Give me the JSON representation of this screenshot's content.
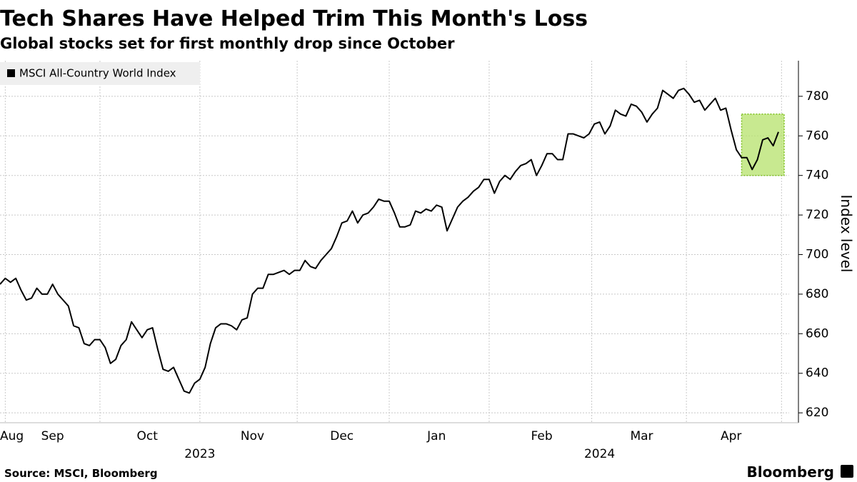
{
  "chart_data": {
    "type": "line",
    "title": "Tech Shares Have Helped Trim This Month's Loss",
    "subtitle": "Global stocks set for first monthly drop since October",
    "source": "Source: MSCI, Bloomberg",
    "brand": "Bloomberg",
    "y_label": "Index level",
    "legend": "upper left",
    "grid": true,
    "categories": [
      "Aug",
      null,
      null,
      null,
      null,
      null,
      null,
      null,
      null,
      null,
      "Sep",
      null,
      null,
      null,
      null,
      null,
      null,
      null,
      null,
      null,
      null,
      null,
      null,
      null,
      null,
      null,
      null,
      null,
      "Oct",
      null,
      null,
      null,
      null,
      null,
      null,
      null,
      null,
      null,
      null,
      null,
      null,
      null,
      null,
      null,
      null,
      null,
      null,
      null,
      "Nov",
      null,
      null,
      null,
      null,
      null,
      null,
      null,
      null,
      null,
      null,
      null,
      null,
      null,
      null,
      null,
      null,
      "Dec",
      null,
      null,
      null,
      null,
      null,
      null,
      null,
      null,
      null,
      null,
      null,
      null,
      null,
      null,
      null,
      null,
      null,
      "Jan",
      null,
      null,
      null,
      null,
      null,
      null,
      null,
      null,
      null,
      null,
      null,
      null,
      null,
      null,
      null,
      null,
      null,
      null,
      null,
      "Feb",
      null,
      null,
      null,
      null,
      null,
      null,
      null,
      null,
      null,
      null,
      null,
      null,
      null,
      null,
      null,
      null,
      null,
      null,
      "Mar",
      null,
      null,
      null,
      null,
      null,
      null,
      null,
      null,
      null,
      null,
      null,
      null,
      null,
      null,
      null,
      null,
      "Apr",
      null,
      null,
      null,
      null,
      null,
      null,
      null,
      null,
      null
    ],
    "categories2": [
      null,
      null,
      null,
      null,
      null,
      null,
      null,
      null,
      null,
      null,
      null,
      null,
      null,
      null,
      null,
      null,
      null,
      null,
      null,
      null,
      null,
      null,
      null,
      null,
      null,
      null,
      null,
      null,
      null,
      null,
      null,
      null,
      null,
      null,
      null,
      null,
      null,
      null,
      "2023",
      null,
      null,
      null,
      null,
      null,
      null,
      null,
      null,
      null,
      null,
      null,
      null,
      null,
      null,
      null,
      null,
      null,
      null,
      null,
      null,
      null,
      null,
      null,
      null,
      null,
      null,
      null,
      null,
      null,
      null,
      null,
      null,
      null,
      null,
      null,
      null,
      null,
      null,
      null,
      null,
      null,
      null,
      null,
      null,
      null,
      null,
      null,
      null,
      null,
      null,
      null,
      null,
      null,
      null,
      null,
      null,
      null,
      null,
      null,
      null,
      null,
      null,
      null,
      null,
      null,
      null,
      null,
      null,
      null,
      null,
      null,
      null,
      null,
      null,
      null,
      "2024",
      null,
      null,
      null,
      null,
      null,
      null,
      null,
      null,
      null,
      null,
      null,
      null,
      null,
      null,
      null,
      null,
      null,
      null,
      null,
      null,
      null,
      null,
      null,
      null,
      null,
      null,
      null,
      null,
      null,
      null,
      null,
      null,
      null,
      null
    ],
    "series": [
      {
        "name": "MSCI All-Country World Index",
        "color": "#000000",
        "values": [
          685,
          688,
          686,
          688,
          682,
          677,
          678,
          683,
          680,
          680,
          685,
          680,
          677,
          674,
          664,
          663,
          655,
          654,
          657,
          657,
          653,
          645,
          647,
          654,
          657,
          666,
          662,
          658,
          662,
          663,
          652,
          642,
          641,
          643,
          637,
          631,
          630,
          635,
          637,
          643,
          655,
          663,
          665,
          665,
          664,
          662,
          667,
          668,
          680,
          683,
          683,
          690,
          690,
          691,
          692,
          690,
          692,
          692,
          697,
          694,
          693,
          697,
          700,
          703,
          709,
          716,
          717,
          722,
          716,
          720,
          721,
          724,
          728,
          727,
          727,
          721,
          714,
          714,
          715,
          722,
          721,
          723,
          722,
          725,
          724,
          712,
          718,
          724,
          727,
          729,
          732,
          734,
          738,
          738,
          731,
          737,
          740,
          738,
          742,
          745,
          746,
          748,
          740,
          745,
          751,
          751,
          748,
          748,
          761,
          761,
          760,
          759,
          761,
          766,
          767,
          761,
          765,
          773,
          771,
          770,
          776,
          775,
          772,
          767,
          771,
          774,
          783,
          781,
          779,
          783,
          784,
          781,
          777,
          778,
          773,
          776,
          779,
          773,
          774,
          763,
          753,
          749,
          749,
          743,
          748,
          758,
          759,
          755,
          762
        ]
      }
    ],
    "highlight": {
      "ylim": [
        740,
        771
      ],
      "color": "#b5e26b",
      "edge": "#7cbf1e"
    },
    "ylim": [
      615,
      798
    ],
    "yticks": [
      620,
      640,
      660,
      680,
      700,
      720,
      740,
      760,
      780
    ]
  }
}
